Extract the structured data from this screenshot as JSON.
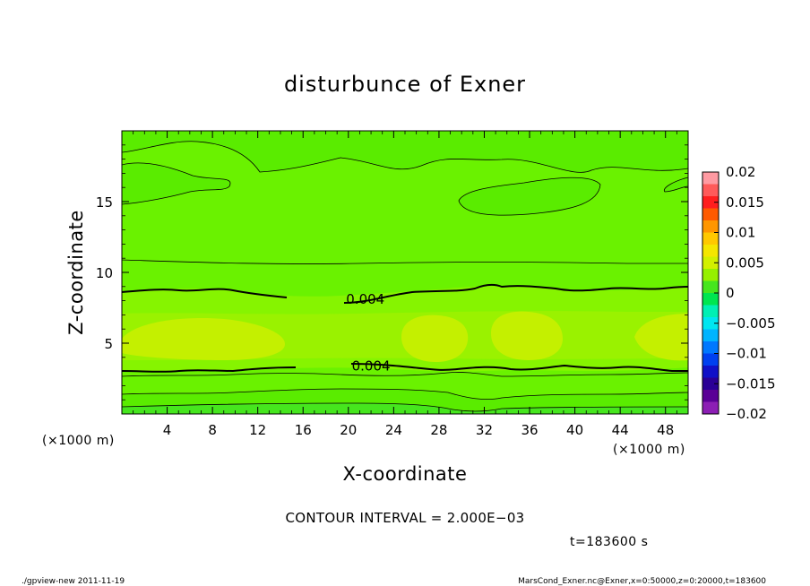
{
  "chart_data": {
    "type": "heatmap",
    "title": "disturbunce of Exner",
    "xlabel": "X-coordinate",
    "ylabel": "Z-coordinate",
    "x_unit": "(×1000 m)",
    "x_unit_right": "(×1000 m)",
    "xlim": [
      0,
      50
    ],
    "ylim": [
      0,
      20
    ],
    "x_ticks": [
      4,
      8,
      12,
      16,
      20,
      24,
      28,
      32,
      36,
      40,
      44,
      48
    ],
    "x_tick_labels": [
      "4",
      "8",
      "12",
      "16",
      "20",
      "24",
      "28",
      "32",
      "36",
      "40",
      "44",
      "48"
    ],
    "y_ticks": [
      5,
      10,
      15
    ],
    "y_tick_labels": [
      "5",
      "10",
      "15"
    ],
    "colorbar": {
      "range": [
        -0.02,
        0.02
      ],
      "tick_values": [
        0.02,
        0.015,
        0.01,
        0.005,
        0,
        -0.005,
        -0.01,
        -0.015,
        -0.02
      ],
      "tick_labels": [
        "0.02",
        "0.015",
        "0.01",
        "0.005",
        "0",
        "−0.005",
        "−0.01",
        "−0.015",
        "−0.02"
      ],
      "colors": [
        "#ff9aa2",
        "#ff5a5a",
        "#ff1e1e",
        "#ff5a00",
        "#ff9600",
        "#ffc800",
        "#f5e600",
        "#d2f000",
        "#96f000",
        "#46e61e",
        "#00e650",
        "#00f0b4",
        "#00e6f0",
        "#00b4ff",
        "#0078ff",
        "#0040f0",
        "#1010c8",
        "#2a0096",
        "#5a0096",
        "#8c1eb4"
      ]
    },
    "contour_interval": 0.002,
    "contour_labels": [
      {
        "value": "0.004",
        "x": 21.5,
        "z": 8.1
      },
      {
        "value": "0.004",
        "x": 22.0,
        "z": 3.4
      }
    ],
    "field_levels": [
      {
        "range": [
          0.0,
          0.002
        ],
        "color": "#5aec00"
      },
      {
        "range": [
          0.002,
          0.004
        ],
        "color": "#6af200"
      },
      {
        "range": [
          0.004,
          0.006
        ],
        "color": "#86f400"
      },
      {
        "range": [
          0.006,
          0.008
        ],
        "color": "#a6f200"
      },
      {
        "range": [
          0.008,
          0.01
        ],
        "color": "#c4f000"
      }
    ]
  },
  "contour_interval_text": "CONTOUR INTERVAL = 2.000E−03",
  "time_text": "t=183600 s",
  "footer_left": "./gpview‐new   2011‐11‐19",
  "footer_right": "MarsCond_Exner.nc@Exner,x=0:50000,z=0:20000,t=183600"
}
